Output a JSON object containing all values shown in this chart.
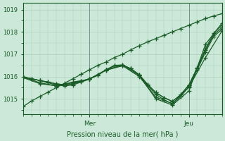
{
  "title": "",
  "xlabel": "Pression niveau de la mer( hPa )",
  "ylabel": "",
  "bg_color": "#cce8d8",
  "grid_color": "#aacfba",
  "line_color": "#1a5c28",
  "ylim": [
    1014.3,
    1019.3
  ],
  "xlim": [
    0,
    48
  ],
  "yticks": [
    1015,
    1016,
    1017,
    1018,
    1019
  ],
  "day_line_x": [
    16,
    40
  ],
  "day_labels": [
    "Mer",
    "Jeu"
  ],
  "lines": [
    {
      "x": [
        0,
        2,
        4,
        6,
        8,
        10,
        12,
        14,
        16,
        18,
        20,
        22,
        24,
        26,
        28,
        30,
        32,
        34,
        36,
        38,
        40,
        42,
        44,
        46,
        48
      ],
      "y": [
        1014.65,
        1014.9,
        1015.1,
        1015.3,
        1015.5,
        1015.7,
        1015.9,
        1016.1,
        1016.3,
        1016.5,
        1016.65,
        1016.85,
        1017.0,
        1017.2,
        1017.38,
        1017.55,
        1017.7,
        1017.85,
        1018.0,
        1018.15,
        1018.3,
        1018.45,
        1018.6,
        1018.72,
        1018.82
      ]
    },
    {
      "x": [
        0,
        2,
        4,
        6,
        8,
        10,
        12,
        14,
        16,
        18,
        20,
        22,
        24,
        26,
        28,
        30,
        32,
        34,
        36,
        38,
        40,
        42,
        44,
        46,
        48
      ],
      "y": [
        1015.98,
        1015.9,
        1015.82,
        1015.72,
        1015.62,
        1015.58,
        1015.62,
        1015.75,
        1015.88,
        1016.05,
        1016.3,
        1016.5,
        1016.52,
        1016.35,
        1016.05,
        1015.6,
        1015.2,
        1014.95,
        1014.78,
        1015.1,
        1015.55,
        1016.3,
        1017.1,
        1017.8,
        1018.12
      ]
    },
    {
      "x": [
        0,
        2,
        4,
        6,
        8,
        10,
        12,
        14,
        16,
        18,
        20,
        22,
        24,
        26,
        28,
        30,
        32,
        34,
        36,
        38,
        40,
        42,
        44,
        46,
        48
      ],
      "y": [
        1015.98,
        1015.9,
        1015.82,
        1015.75,
        1015.67,
        1015.63,
        1015.67,
        1015.78,
        1015.9,
        1016.08,
        1016.3,
        1016.48,
        1016.5,
        1016.35,
        1016.08,
        1015.65,
        1015.28,
        1015.05,
        1014.88,
        1015.18,
        1015.62,
        1016.35,
        1017.18,
        1017.88,
        1018.2
      ]
    },
    {
      "x": [
        0,
        2,
        4,
        6,
        8,
        10,
        12,
        14,
        16,
        18,
        20,
        22,
        24,
        26,
        28,
        30,
        32,
        34,
        36,
        38,
        40,
        42,
        44,
        46,
        48
      ],
      "y": [
        1015.98,
        1015.9,
        1015.82,
        1015.75,
        1015.67,
        1015.63,
        1015.67,
        1015.78,
        1015.9,
        1016.08,
        1016.3,
        1016.48,
        1016.5,
        1016.35,
        1016.08,
        1015.65,
        1015.28,
        1015.05,
        1014.88,
        1015.18,
        1015.62,
        1016.4,
        1017.25,
        1017.95,
        1018.3
      ]
    },
    {
      "x": [
        0,
        4,
        8,
        12,
        16,
        20,
        24,
        28,
        32,
        36,
        40,
        44,
        48
      ],
      "y": [
        1015.98,
        1015.72,
        1015.58,
        1015.72,
        1015.88,
        1016.3,
        1016.52,
        1016.05,
        1015.0,
        1014.72,
        1015.35,
        1017.45,
        1018.4
      ]
    },
    {
      "x": [
        0,
        4,
        8,
        12,
        16,
        20,
        24,
        28,
        32,
        36,
        40,
        44,
        48
      ],
      "y": [
        1015.95,
        1015.68,
        1015.58,
        1015.75,
        1015.88,
        1016.28,
        1016.48,
        1016.0,
        1015.08,
        1014.78,
        1015.52,
        1016.85,
        1018.05
      ]
    }
  ],
  "marker": "+",
  "markersize": 4,
  "linewidth": 0.9
}
